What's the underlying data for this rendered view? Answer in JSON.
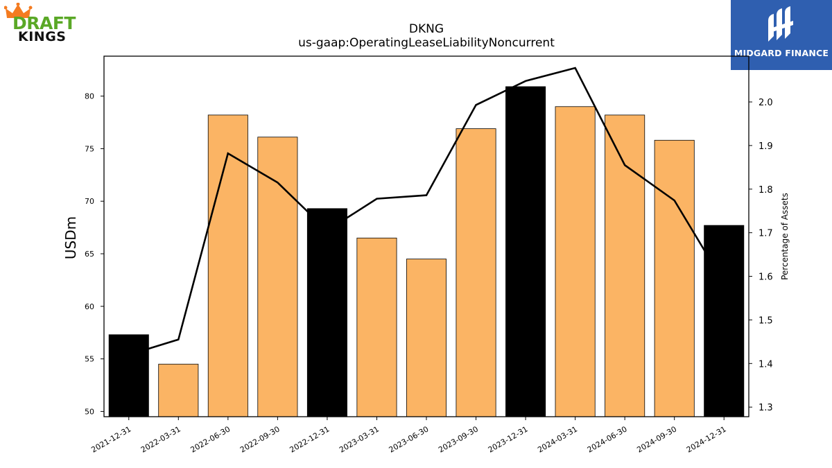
{
  "header": {
    "ticker": "DKNG",
    "metric": "us-gaap:OperatingLeaseLiabilityNoncurrent"
  },
  "logos": {
    "left": {
      "line1": "DRAFT",
      "line2": "KINGS"
    },
    "right": {
      "text": "MIDGARD FINANCE"
    }
  },
  "colors": {
    "bar_quarter": "#fbb464",
    "bar_year_end": "#000000",
    "line": "#000000",
    "logo_right_bg": "#2f5fb0",
    "logo_left_green": "#5aa826",
    "logo_left_crown": "#f47b20"
  },
  "chart_data": {
    "type": "bar",
    "title": "DKNG",
    "subtitle": "us-gaap:OperatingLeaseLiabilityNoncurrent",
    "categories": [
      "2021-12-31",
      "2022-03-31",
      "2022-06-30",
      "2022-09-30",
      "2022-12-31",
      "2023-03-31",
      "2023-06-30",
      "2023-09-30",
      "2023-12-31",
      "2024-03-31",
      "2024-06-30",
      "2024-09-30",
      "2024-12-31"
    ],
    "series": [
      {
        "axis": "left",
        "kind": "bar",
        "values": [
          57.3,
          54.5,
          78.2,
          76.1,
          69.3,
          66.5,
          64.5,
          76.9,
          80.9,
          79.0,
          78.2,
          75.8,
          67.7
        ],
        "year_end_flags": [
          true,
          false,
          false,
          false,
          true,
          false,
          false,
          false,
          true,
          false,
          false,
          false,
          true
        ]
      },
      {
        "axis": "right",
        "kind": "line",
        "values": [
          1.42,
          1.455,
          1.882,
          1.815,
          1.705,
          1.778,
          1.786,
          1.993,
          2.048,
          2.078,
          1.855,
          1.774,
          1.585
        ]
      }
    ],
    "ylabel": "USDm",
    "y2label": "Percentage of Assets",
    "ylim": [
      49.5,
      83.8
    ],
    "y2lim": [
      1.278,
      2.105
    ],
    "yticks": [
      50,
      55,
      60,
      65,
      70,
      75,
      80
    ],
    "y2ticks": [
      1.3,
      1.4,
      1.5,
      1.6,
      1.7,
      1.8,
      1.9,
      2.0
    ],
    "grid": false,
    "legend": "none"
  }
}
